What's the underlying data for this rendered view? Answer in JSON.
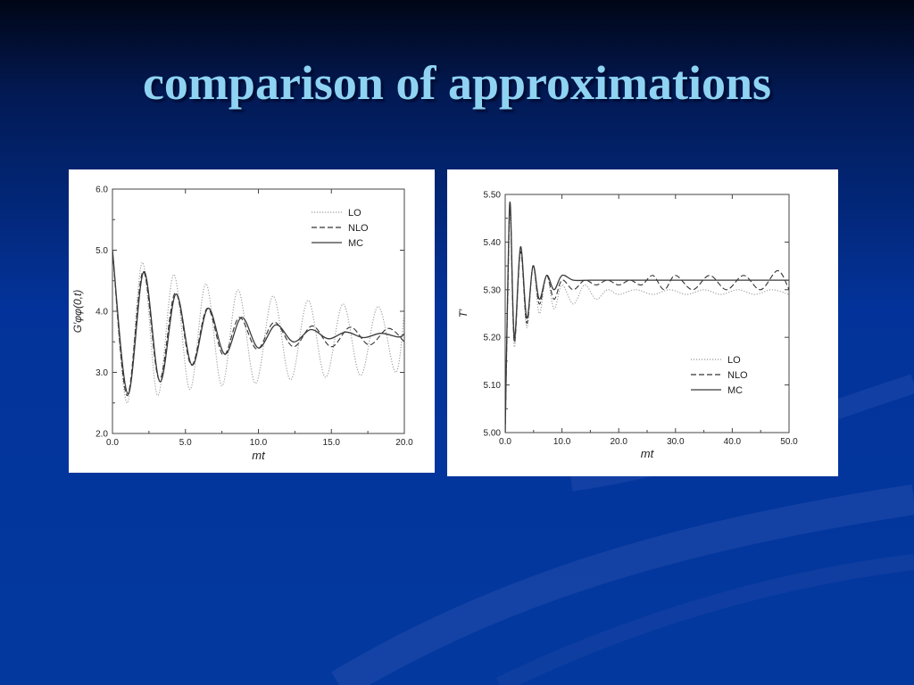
{
  "slide": {
    "title": "comparison of approximations"
  },
  "colors": {
    "title": "#8fd3f2",
    "background": "#03339a",
    "panel": "#ffffff",
    "LO": "#9a9a9a",
    "NLO": "#333333",
    "MC": "#3a3a3a"
  },
  "chart_data": [
    {
      "type": "line",
      "xlabel": "mt",
      "ylabel": "G′φφ(0,t)",
      "xlim": [
        0,
        20
      ],
      "ylim": [
        2,
        6
      ],
      "xticks": [
        "0.0",
        "5.0",
        "10.0",
        "15.0",
        "20.0"
      ],
      "yticks": [
        "2.0",
        "3.0",
        "4.0",
        "5.0",
        "6.0"
      ],
      "legend_position": "top-right",
      "grid": false,
      "series": [
        {
          "name": "LO",
          "style": "dotted",
          "x": [
            0,
            1.0,
            2.05,
            3.1,
            4.2,
            5.3,
            6.4,
            7.5,
            8.6,
            9.8,
            11.0,
            12.2,
            13.4,
            14.6,
            15.8,
            17.0,
            18.2,
            19.4,
            20.0
          ],
          "y": [
            5.0,
            2.5,
            4.8,
            2.62,
            4.6,
            2.72,
            4.45,
            2.78,
            4.35,
            2.82,
            4.25,
            2.88,
            4.18,
            2.92,
            4.12,
            2.95,
            4.08,
            3.0,
            4.0
          ]
        },
        {
          "name": "NLO",
          "style": "dashed",
          "x": [
            0,
            1.0,
            2.1,
            3.2,
            4.3,
            5.4,
            6.5,
            7.6,
            8.7,
            9.9,
            11.1,
            12.4,
            13.7,
            15.0,
            16.3,
            17.6,
            18.9,
            20.0
          ],
          "y": [
            5.0,
            2.62,
            4.65,
            2.88,
            4.3,
            3.12,
            4.05,
            3.28,
            3.9,
            3.38,
            3.82,
            3.42,
            3.76,
            3.42,
            3.74,
            3.45,
            3.72,
            3.5
          ]
        },
        {
          "name": "MC",
          "style": "solid",
          "x": [
            0,
            1.05,
            2.15,
            3.25,
            4.35,
            5.45,
            6.55,
            7.7,
            8.85,
            10.0,
            11.2,
            12.4,
            13.6,
            14.8,
            16.0,
            17.2,
            18.4,
            19.6,
            20.0
          ],
          "y": [
            5.0,
            2.65,
            4.65,
            2.85,
            4.28,
            3.12,
            4.05,
            3.3,
            3.9,
            3.4,
            3.78,
            3.5,
            3.7,
            3.55,
            3.66,
            3.57,
            3.64,
            3.58,
            3.63
          ]
        }
      ]
    },
    {
      "type": "line",
      "xlabel": "mt",
      "ylabel": "T′",
      "xlim": [
        0,
        50
      ],
      "ylim": [
        5.0,
        5.5
      ],
      "xticks": [
        "0.0",
        "10.0",
        "20.0",
        "30.0",
        "40.0",
        "50.0"
      ],
      "yticks": [
        "5.00",
        "5.10",
        "5.20",
        "5.30",
        "5.40",
        "5.50"
      ],
      "legend_position": "bottom-right",
      "grid": false,
      "series": [
        {
          "name": "LO",
          "style": "dotted",
          "x": [
            0,
            0.5,
            0.9,
            1.6,
            2.7,
            3.8,
            4.9,
            6.0,
            7.3,
            8.6,
            10.0,
            12.0,
            14.0,
            16.0,
            18.0,
            20.0,
            23.0,
            26.0,
            29.0,
            32.0,
            35.0,
            38.0,
            41.0,
            44.0,
            47.0,
            50.0
          ],
          "y": [
            5.0,
            5.3,
            5.46,
            5.18,
            5.38,
            5.22,
            5.35,
            5.25,
            5.33,
            5.26,
            5.31,
            5.27,
            5.31,
            5.28,
            5.3,
            5.29,
            5.3,
            5.29,
            5.3,
            5.29,
            5.3,
            5.29,
            5.3,
            5.29,
            5.3,
            5.29
          ]
        },
        {
          "name": "NLO",
          "style": "dashed",
          "x": [
            0,
            0.5,
            0.9,
            1.6,
            2.7,
            3.8,
            4.9,
            6.0,
            7.3,
            8.6,
            10.0,
            12.0,
            14.0,
            16.0,
            18.0,
            20.0,
            22.0,
            24.0,
            26.0,
            28.0,
            30.0,
            33.0,
            36.0,
            39.0,
            42.0,
            45.0,
            48.0,
            50.0
          ],
          "y": [
            5.0,
            5.32,
            5.47,
            5.19,
            5.38,
            5.23,
            5.35,
            5.27,
            5.33,
            5.28,
            5.32,
            5.3,
            5.32,
            5.31,
            5.32,
            5.31,
            5.32,
            5.31,
            5.33,
            5.3,
            5.33,
            5.3,
            5.33,
            5.3,
            5.33,
            5.3,
            5.34,
            5.3
          ]
        },
        {
          "name": "MC",
          "style": "solid",
          "x": [
            0,
            0.5,
            0.9,
            1.6,
            2.7,
            3.8,
            4.9,
            6.0,
            7.3,
            8.6,
            10.0,
            12.0,
            15.0,
            18.0,
            21.0,
            24.0,
            27.0,
            30.0,
            33.0,
            36.0,
            39.0,
            42.0,
            45.0,
            48.0,
            50.0
          ],
          "y": [
            5.0,
            5.34,
            5.48,
            5.2,
            5.39,
            5.24,
            5.35,
            5.28,
            5.33,
            5.3,
            5.33,
            5.32,
            5.32,
            5.32,
            5.32,
            5.32,
            5.32,
            5.32,
            5.32,
            5.32,
            5.32,
            5.32,
            5.32,
            5.32,
            5.32
          ]
        }
      ]
    }
  ]
}
